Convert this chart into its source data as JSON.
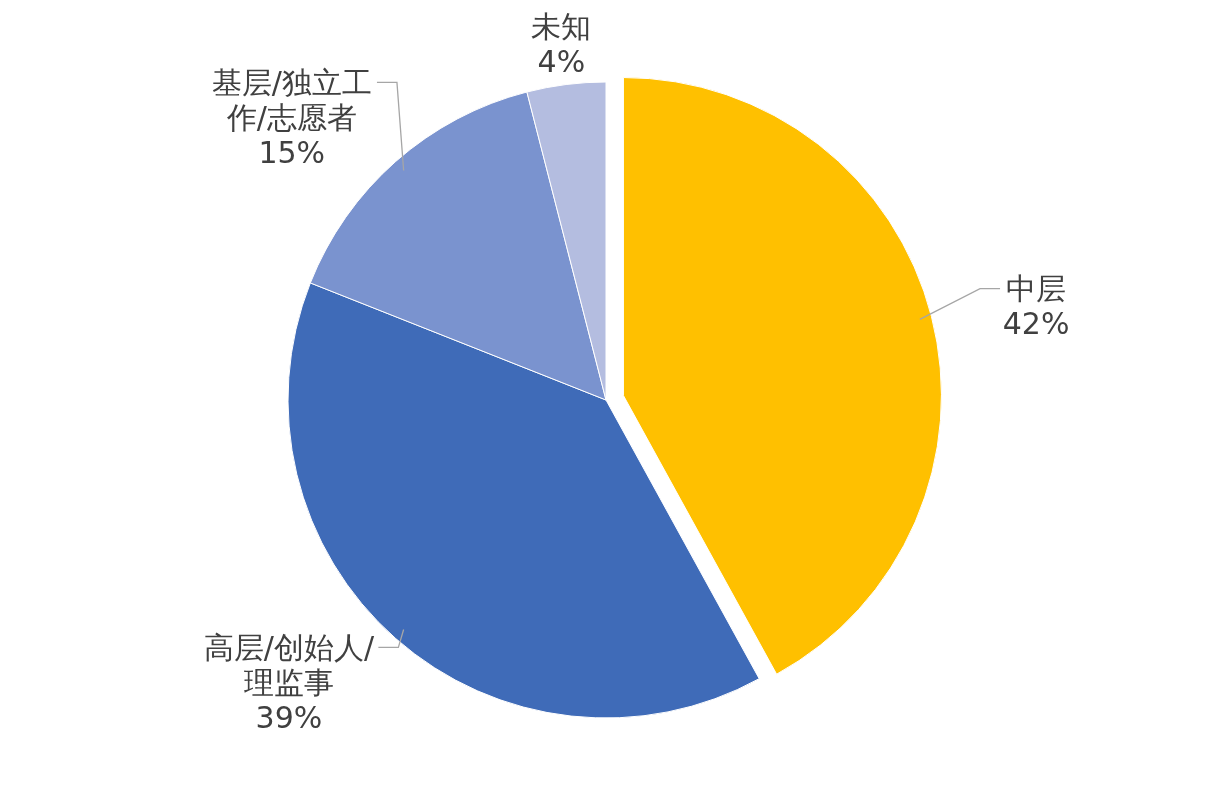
{
  "chart_data": {
    "type": "pie",
    "categories": [
      "中层",
      "高层/创始人/理监事",
      "基层/独立工作/志愿者",
      "未知"
    ],
    "values": [
      42,
      39,
      15,
      4
    ],
    "value_labels": [
      "42%",
      "39%",
      "15%",
      "4%"
    ],
    "colors": [
      "#ffc000",
      "#3f6bb8",
      "#7a93cf",
      "#b4bde0"
    ]
  }
}
